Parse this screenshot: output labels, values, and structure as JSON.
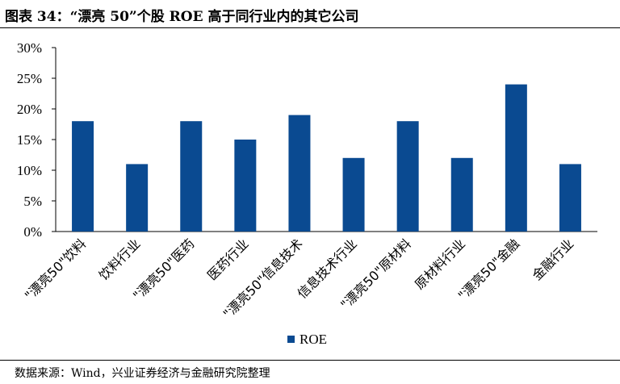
{
  "title": "图表 34：“漂亮 50”个股 ROE 高于同行业内的其它公司",
  "source": "数据来源：Wind，兴业证券经济与金融研究院整理",
  "colors": {
    "bar": "#0a4a91",
    "axis": "#000000"
  },
  "chart_data": {
    "type": "bar",
    "title": "",
    "xlabel": "",
    "ylabel": "",
    "categories": [
      "\"漂亮50\"饮料",
      "饮料行业",
      "\"漂亮50\"医药",
      "医药行业",
      "\"漂亮50\"信息技术",
      "信息技术行业",
      "\"漂亮50\"原材料",
      "原材料行业",
      "\"漂亮50\"金融",
      "金融行业"
    ],
    "series": [
      {
        "name": "ROE",
        "values": [
          18,
          11,
          18,
          15,
          19,
          12,
          18,
          12,
          24,
          11
        ]
      }
    ],
    "ylim": [
      0,
      30
    ],
    "yticks": [
      "0%",
      "5%",
      "10%",
      "15%",
      "20%",
      "25%",
      "30%"
    ],
    "legend": "bottom-center",
    "grid": false
  }
}
